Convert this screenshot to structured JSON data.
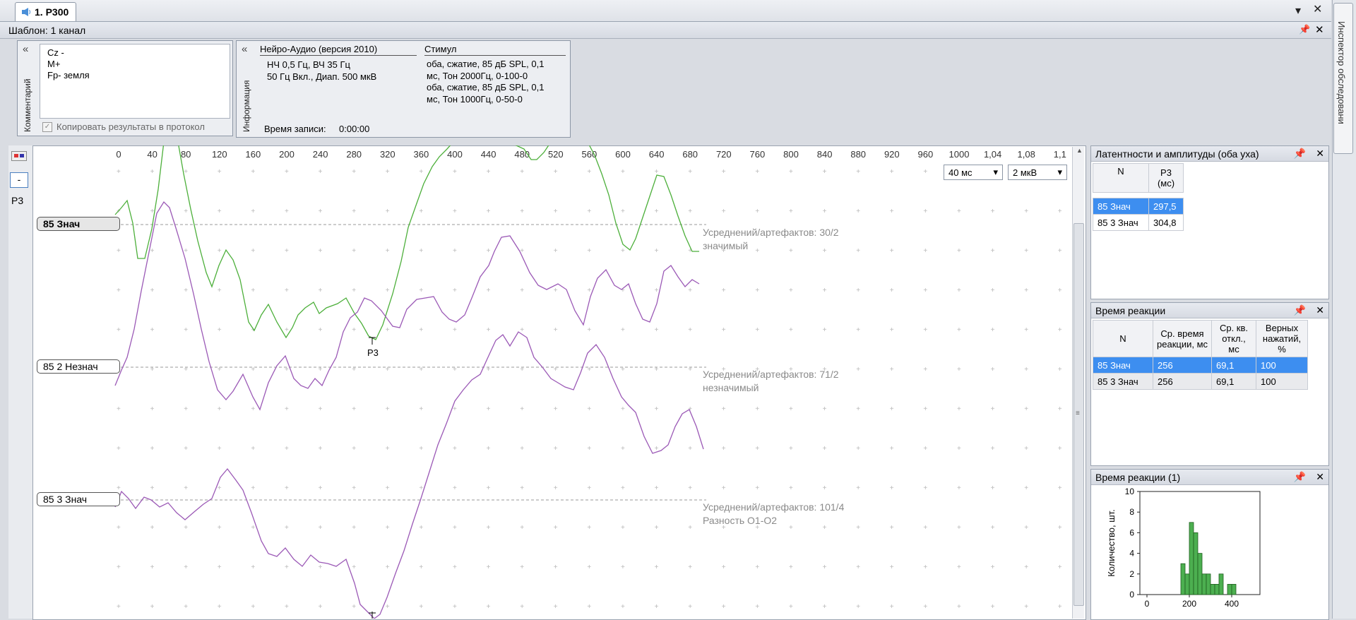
{
  "tab": {
    "title": "1. P300"
  },
  "template": {
    "label": "Шаблон: 1 канал"
  },
  "comment": {
    "group_label": "Комментарий",
    "lines": [
      "Cz -",
      "M+",
      "Fp- земля"
    ],
    "copy_checkbox": "Копировать результаты в протокол"
  },
  "info": {
    "group_label": "Информация",
    "device_title": "Нейро-Аудио (версия 2010)",
    "filters_line1": "НЧ 0,5 Гц, ВЧ 35 Гц",
    "filters_line2": "50 Гц Вкл., Диап. 500 мкВ",
    "stimulus_title": "Стимул",
    "stimulus_lines": [
      "оба, сжатие, 85 дБ SPL, 0,1",
      "мс, Тон 2000Гц, 0-100-0",
      "оба, сжатие, 85 дБ SPL, 0,1",
      "мс, Тон 1000Гц, 0-50-0"
    ],
    "record_time_label": "Время записи:",
    "record_time_value": "0:00:00"
  },
  "inspector_tab": "Инспектор обследовани",
  "left_tools": {
    "minus": "-",
    "channel": "P3"
  },
  "plot": {
    "axis_ticks": [
      "0",
      "40",
      "80",
      "120",
      "160",
      "200",
      "240",
      "280",
      "320",
      "360",
      "400",
      "440",
      "480",
      "520",
      "560",
      "600",
      "640",
      "680",
      "720",
      "760",
      "800",
      "840",
      "880",
      "920",
      "960",
      "1000",
      "1,04",
      "1,08",
      "1,1"
    ],
    "time_scale": "40 мс",
    "amp_scale": "2 мкВ",
    "traces": [
      {
        "label": "85  Знач",
        "note1": "Усреднений/артефактов: 30/2",
        "note2": "значимый",
        "color": "#4caf3a"
      },
      {
        "label": "85  2 Незнач",
        "note1": "Усреднений/артефактов: 71/2",
        "note2": "незначимый",
        "color": "#9b59b6"
      },
      {
        "label": "85  3 Знач",
        "note1": "Усреднений/артефактов: 101/4",
        "note2": "Разность О1-О2",
        "color": "#9b59b6"
      }
    ],
    "peak_label": "P3"
  },
  "lat_panel": {
    "title": "Латентности и амплитуды (оба уха)",
    "col_n": "N",
    "col_p3": "P3 (мс)",
    "rows": [
      {
        "n": "85  Знач",
        "p3": "297,5"
      },
      {
        "n": "85  3 Знач",
        "p3": "304,8"
      }
    ]
  },
  "rt_panel": {
    "title": "Время реакции",
    "headers": [
      "N",
      "Ср. время реакции, мс",
      "Ср. кв. откл., мс",
      "Верных нажатий, %"
    ],
    "rows": [
      [
        "85  Знач",
        "256",
        "69,1",
        "100"
      ],
      [
        "85  3 Знач",
        "256",
        "69,1",
        "100"
      ]
    ]
  },
  "hist_panel": {
    "title": "Время реакции (1)",
    "ylabel": "Количество, шт.",
    "chart_data": {
      "type": "bar",
      "title": "",
      "ylabel": "Количество, шт.",
      "xlabel": "",
      "ylim": [
        0,
        10
      ],
      "xlim": [
        0,
        500
      ],
      "y_ticks": [
        0,
        2,
        4,
        6,
        8,
        10
      ],
      "x_ticks": [
        0,
        200,
        400
      ],
      "bin_width": 20,
      "bins_start": [
        160,
        180,
        200,
        220,
        240,
        260,
        280,
        300,
        320,
        340,
        380,
        400
      ],
      "values": [
        3,
        2,
        7,
        6,
        4,
        2,
        2,
        1,
        1,
        2,
        1,
        1
      ],
      "color": "#4caf50"
    }
  }
}
